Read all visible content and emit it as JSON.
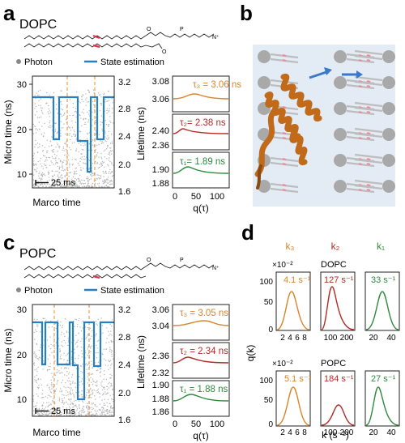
{
  "panels": {
    "a": {
      "letter": "a",
      "lipid": "DOPC",
      "legend": {
        "photon": "Photon",
        "state": "State estimation"
      },
      "trace": {
        "ylabel_left": "Micro time (ns)",
        "ylabel_right": "Lifetime (ns)",
        "xlabel": "Marco time",
        "scalebar": "25 ms",
        "left_ticks": [
          "30",
          "20",
          "10"
        ],
        "right_ticks": [
          "3.2",
          "2.8",
          "2.4",
          "2.0",
          "1.6"
        ],
        "state_sequence": [
          3.06,
          2.38,
          3.06,
          2.38,
          3.06,
          1.89,
          3.06,
          2.38,
          3.06
        ]
      },
      "histograms": [
        {
          "label": "τ₃ = 3.06 ns",
          "ticks": [
            "3.08",
            "3.06"
          ],
          "color": "#d9852a"
        },
        {
          "label": "τ₂= 2.38 ns",
          "ticks": [
            "2.40",
            "2.36"
          ],
          "color": "#b52a25"
        },
        {
          "label": "τ₁= 1.89 ns",
          "ticks": [
            "1.90",
            "1.88"
          ],
          "color": "#2e8b3d"
        }
      ],
      "hist_xticks": [
        "0",
        "50",
        "100"
      ],
      "hist_xlabel": "q(τ)"
    },
    "b": {
      "letter": "b"
    },
    "c": {
      "letter": "c",
      "lipid": "POPC",
      "legend": {
        "photon": "Photon",
        "state": "State estimation"
      },
      "trace": {
        "ylabel_left": "Micro time (ns)",
        "ylabel_right": "Lifetime (ns)",
        "xlabel": "Marco time",
        "scalebar": "25 ms",
        "left_ticks": [
          "30",
          "20",
          "10"
        ],
        "right_ticks": [
          "3.2",
          "2.8",
          "2.4",
          "2.0",
          "1.6"
        ],
        "state_sequence": [
          3.05,
          2.34,
          3.05,
          2.34,
          3.05,
          2.34,
          1.88,
          3.05,
          2.34,
          3.05
        ]
      },
      "histograms": [
        {
          "label": "τ₃ = 3.05 ns",
          "ticks": [
            "3.06",
            "3.04"
          ],
          "color": "#d9852a"
        },
        {
          "label": "τ₂ = 2.34 ns",
          "ticks": [
            "2.36",
            "2.32"
          ],
          "color": "#b52a25"
        },
        {
          "label": "τ₁ = 1.88 ns",
          "ticks": [
            "1.90",
            "1.88",
            "1.86"
          ],
          "color": "#2e8b3d"
        }
      ],
      "hist_xticks": [
        "0",
        "50",
        "100"
      ],
      "hist_xlabel": "q(τ)"
    },
    "d": {
      "letter": "d",
      "columns": [
        {
          "label": "k₃",
          "color": "#d9852a"
        },
        {
          "label": "k₂",
          "color": "#b52a25"
        },
        {
          "label": "k₁",
          "color": "#2e8b3d"
        }
      ],
      "ylabel": "q(k)",
      "xlabel": "k (s⁻¹)",
      "multiplier": "×10⁻²",
      "yticks": [
        "100",
        "50",
        "0"
      ],
      "rows": [
        {
          "name": "DOPC",
          "values": [
            "4.1 s⁻¹",
            "127 s⁻¹",
            "33 s⁻¹"
          ]
        },
        {
          "name": "POPC",
          "values": [
            "5.1 s⁻¹",
            "184 s⁻¹",
            "27 s⁻¹"
          ]
        }
      ],
      "xticks": [
        [
          "2",
          "4",
          "6",
          "8"
        ],
        [
          "100",
          "200"
        ],
        [
          "20",
          "40"
        ]
      ]
    }
  },
  "colors": {
    "trace": "#2a7fc1",
    "photon": "#b5b5b5",
    "orange": "#d9852a",
    "red": "#b52a25",
    "green": "#2e8b3d",
    "helix": "#c06a1a",
    "membrane_bg": "#dfe8f3"
  }
}
